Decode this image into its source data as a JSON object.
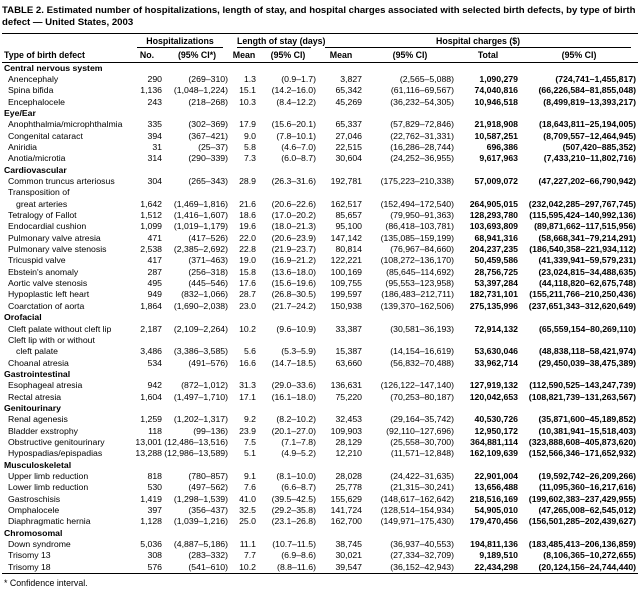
{
  "title": "TABLE 2. Estimated number of hospitalizations, length of stay, and hospital charges associated with selected birth defects, by type of birth defect — United States, 2003",
  "footnote": "* Confidence interval.",
  "table": {
    "header": {
      "type_col": "Type of birth defect",
      "groups": [
        {
          "label": "Hospitalizations"
        },
        {
          "label": "Length of stay (days)"
        },
        {
          "label": "Hospital charges ($)"
        }
      ],
      "cols": [
        "No.",
        "(95% CI*)",
        "Mean",
        "(95% CI)",
        "Mean",
        "(95% CI)",
        "Total",
        "(95% CI)"
      ]
    },
    "sections": [
      {
        "name": "Central nervous system",
        "rows": [
          {
            "label": "Anencephaly",
            "cells": [
              "290",
              "(269–310)",
              "1.3",
              "(0.9–1.7)",
              "3,827",
              "(2,565–5,088)",
              "1,090,279",
              "(724,741–1,455,817)"
            ]
          },
          {
            "label": "Spina bifida",
            "cells": [
              "1,136",
              "(1,048–1,224)",
              "15.1",
              "(14.2–16.0)",
              "65,342",
              "(61,116–69,567)",
              "74,040,816",
              "(66,226,584–81,855,048)"
            ]
          },
          {
            "label": "Encephalocele",
            "cells": [
              "243",
              "(218–268)",
              "10.3",
              "(8.4–12.2)",
              "45,269",
              "(36,232–54,305)",
              "10,946,518",
              "(8,499,819–13,393,217)"
            ]
          }
        ]
      },
      {
        "name": "Eye/Ear",
        "rows": [
          {
            "label": "Anophthalmia/microphthalmia",
            "cells": [
              "335",
              "(302–369)",
              "17.9",
              "(15.6–20.1)",
              "65,337",
              "(57,829–72,846)",
              "21,918,908",
              "(18,643,811–25,194,005)"
            ]
          },
          {
            "label": "Congenital cataract",
            "cells": [
              "394",
              "(367–421)",
              "9.0",
              "(7.8–10.1)",
              "27,046",
              "(22,762–31,331)",
              "10,587,251",
              "(8,709,557–12,464,945)"
            ]
          },
          {
            "label": "Aniridia",
            "cells": [
              "31",
              "(25–37)",
              "5.8",
              "(4.6–7.0)",
              "22,515",
              "(16,286–28,744)",
              "696,386",
              "(507,420–885,352)"
            ]
          },
          {
            "label": "Anotia/microtia",
            "cells": [
              "314",
              "(290–339)",
              "7.3",
              "(6.0–8.7)",
              "30,604",
              "(24,252–36,955)",
              "9,617,963",
              "(7,433,210–11,802,716)"
            ]
          }
        ]
      },
      {
        "name": "Cardiovascular",
        "rows": [
          {
            "label": "Common truncus arteriosus",
            "cells": [
              "304",
              "(265–343)",
              "28.9",
              "(26.3–31.6)",
              "192,781",
              "(175,223–210,338)",
              "57,009,072",
              "(47,227,202–66,790,942)"
            ]
          },
          {
            "label": "Transposition of\ngreat arteries",
            "cells": [
              "1,642",
              "(1,469–1,816)",
              "21.6",
              "(20.6–22.6)",
              "162,517",
              "(152,494–172,540)",
              "264,905,015",
              "(232,042,285–297,767,745)"
            ]
          },
          {
            "label": "Tetralogy of Fallot",
            "cells": [
              "1,512",
              "(1,416–1,607)",
              "18.6",
              "(17.0–20.2)",
              "85,657",
              "(79,950–91,363)",
              "128,293,780",
              "(115,595,424–140,992,136)"
            ]
          },
          {
            "label": "Endocardial cushion",
            "cells": [
              "1,099",
              "(1,019–1,179)",
              "19.6",
              "(18.0–21.3)",
              "95,100",
              "(86,418–103,781)",
              "103,693,809",
              "(89,871,662–117,515,956)"
            ]
          },
          {
            "label": "Pulmonary valve atresia",
            "cells": [
              "471",
              "(417–526)",
              "22.0",
              "(20.6–23.9)",
              "147,142",
              "(135,085–159,199)",
              "68,941,316",
              "(58,668,341–79,214,291)"
            ]
          },
          {
            "label": "Pulmonary valve stenosis",
            "cells": [
              "2,538",
              "(2,385–2,692)",
              "22.8",
              "(21.9–23.7)",
              "80,814",
              "(76,967–84,660)",
              "204,237,235",
              "(186,540,358–221,934,112)"
            ]
          },
          {
            "label": "Tricuspid valve",
            "cells": [
              "417",
              "(371–463)",
              "19.0",
              "(16.9–21.2)",
              "122,221",
              "(108,272–136,170)",
              "50,459,586",
              "(41,339,941–59,579,231)"
            ]
          },
          {
            "label": "Ebstein's anomaly",
            "cells": [
              "287",
              "(256–318)",
              "15.8",
              "(13.6–18.0)",
              "100,169",
              "(85,645–114,692)",
              "28,756,725",
              "(23,024,815–34,488,635)"
            ]
          },
          {
            "label": "Aortic valve stenosis",
            "cells": [
              "495",
              "(445–546)",
              "17.6",
              "(15.6–19.6)",
              "109,755",
              "(95,553–123,958)",
              "53,397,284",
              "(44,118,820–62,675,748)"
            ]
          },
          {
            "label": "Hypoplastic left heart",
            "cells": [
              "949",
              "(832–1,066)",
              "28.7",
              "(26.8–30.5)",
              "199,597",
              "(186,483–212,711)",
              "182,731,101",
              "(155,211,766–210,250,436)"
            ]
          },
          {
            "label": "Coarctation of aorta",
            "cells": [
              "1,864",
              "(1,690–2,038)",
              "23.0",
              "(21.7–24.2)",
              "150,938",
              "(139,370–162,506)",
              "275,135,996",
              "(237,651,343–312,620,649)"
            ]
          }
        ]
      },
      {
        "name": "Orofacial",
        "rows": [
          {
            "label": "Cleft palate without cleft lip",
            "cells": [
              "2,187",
              "(2,109–2,264)",
              "10.2",
              "(9.6–10.9)",
              "33,387",
              "(30,581–36,193)",
              "72,914,132",
              "(65,559,154–80,269,110)"
            ]
          },
          {
            "label": "Cleft lip with or without\ncleft palate",
            "cells": [
              "3,486",
              "(3,386–3,585)",
              "5.6",
              "(5.3–5.9)",
              "15,387",
              "(14,154–16,619)",
              "53,630,046",
              "(48,838,118–58,421,974)"
            ]
          },
          {
            "label": "Choanal atresia",
            "cells": [
              "534",
              "(491–576)",
              "16.6",
              "(14.7–18.5)",
              "63,660",
              "(56,832–70,488)",
              "33,962,714",
              "(29,450,039–38,475,389)"
            ]
          }
        ]
      },
      {
        "name": "Gastrointestinal",
        "rows": [
          {
            "label": "Esophageal atresia",
            "cells": [
              "942",
              "(872–1,012)",
              "31.3",
              "(29.0–33.6)",
              "136,631",
              "(126,122–147,140)",
              "127,919,132",
              "(112,590,525–143,247,739)"
            ]
          },
          {
            "label": "Rectal atresia",
            "cells": [
              "1,604",
              "(1,497–1,710)",
              "17.1",
              "(16.1–18.0)",
              "75,220",
              "(70,253–80,187)",
              "120,042,653",
              "(108,821,739–131,263,567)"
            ]
          }
        ]
      },
      {
        "name": "Genitourinary",
        "rows": [
          {
            "label": "Renal agenesis",
            "cells": [
              "1,259",
              "(1,202–1,317)",
              "9.2",
              "(8.2–10.2)",
              "32,453",
              "(29,164–35,742)",
              "40,530,726",
              "(35,871,600–45,189,852)"
            ]
          },
          {
            "label": "Bladder exstrophy",
            "cells": [
              "118",
              "(99–136)",
              "23.9",
              "(20.1–27.0)",
              "109,903",
              "(92,110–127,696)",
              "12,950,172",
              "(10,381,941–15,518,403)"
            ]
          },
          {
            "label": "Obstructive genitourinary",
            "cells": [
              "13,001",
              "(12,486–13,516)",
              "7.5",
              "(7.1–7.8)",
              "28,129",
              "(25,558–30,700)",
              "364,881,114",
              "(323,888,608–405,873,620)"
            ]
          },
          {
            "label": "Hypospadias/epispadias",
            "cells": [
              "13,288",
              "(12,986–13,589)",
              "5.1",
              "(4.9–5.2)",
              "12,210",
              "(11,571–12,848)",
              "162,109,639",
              "(152,566,346–171,652,932)"
            ]
          }
        ]
      },
      {
        "name": "Musculoskeletal",
        "rows": [
          {
            "label": "Upper limb reduction",
            "cells": [
              "818",
              "(780–857)",
              "9.1",
              "(8.1–10.0)",
              "28,028",
              "(24,422–31,635)",
              "22,901,004",
              "(19,592,742–26,209,266)"
            ]
          },
          {
            "label": "Lower limb reduction",
            "cells": [
              "530",
              "(497–562)",
              "7.6",
              "(6.6–8.7)",
              "25,778",
              "(21,315–30,241)",
              "13,656,488",
              "(11,095,360–16,217,616)"
            ]
          },
          {
            "label": "Gastroschisis",
            "cells": [
              "1,419",
              "(1,298–1,539)",
              "41.0",
              "(39.5–42.5)",
              "155,629",
              "(148,617–162,642)",
              "218,516,169",
              "(199,602,383–237,429,955)"
            ]
          },
          {
            "label": "Omphalocele",
            "cells": [
              "397",
              "(356–437)",
              "32.5",
              "(29.2–35.8)",
              "141,724",
              "(128,514–154,934)",
              "54,905,010",
              "(47,265,008–62,545,012)"
            ]
          },
          {
            "label": "Diaphragmatic hernia",
            "cells": [
              "1,128",
              "(1,039–1,216)",
              "25.0",
              "(23.1–26.8)",
              "162,700",
              "(149,971–175,430)",
              "179,470,456",
              "(156,501,285–202,439,627)"
            ]
          }
        ]
      },
      {
        "name": "Chromosomal",
        "rows": [
          {
            "label": "Down syndrome",
            "cells": [
              "5,036",
              "(4,887–5,186)",
              "11.1",
              "(10.7–11.5)",
              "38,745",
              "(36,937–40,553)",
              "194,811,136",
              "(183,485,413–206,136,859)"
            ]
          },
          {
            "label": "Trisomy 13",
            "cells": [
              "308",
              "(283–332)",
              "7.7",
              "(6.9–8.6)",
              "30,021",
              "(27,334–32,709)",
              "9,189,510",
              "(8,106,365–10,272,655)"
            ]
          },
          {
            "label": "Trisomy 18",
            "cells": [
              "576",
              "(541–610)",
              "10.2",
              "(8.8–11.6)",
              "39,547",
              "(36,152–42,943)",
              "22,434,298",
              "(20,124,156–24,744,440)"
            ]
          }
        ]
      }
    ]
  }
}
